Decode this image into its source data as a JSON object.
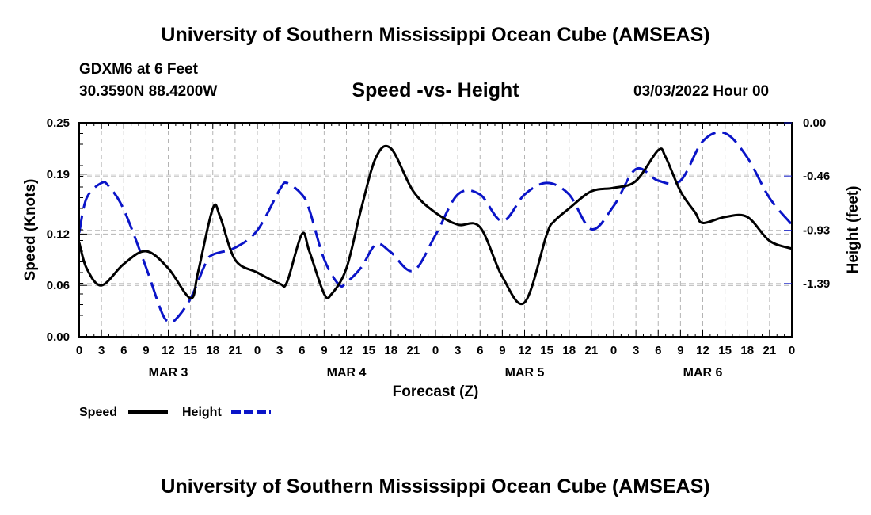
{
  "header": {
    "title": "University of Southern Mississippi Ocean Cube (AMSEAS)",
    "station": "GDXM6 at 6 Feet",
    "coords": "30.3590N  88.4200W",
    "chart_title": "Speed -vs- Height",
    "datetime": "03/03/2022 Hour 00"
  },
  "footer": {
    "title": "University of Southern Mississippi Ocean Cube (AMSEAS)"
  },
  "colors": {
    "speed": "#000000",
    "height": "#0a14c8",
    "grid": "#b4b4b4"
  },
  "chart_data": {
    "type": "line",
    "title": "Speed -vs- Height",
    "xlabel": "Forecast (Z)",
    "ylabel_left": "Speed (Knots)",
    "ylabel_right": "Height (feet)",
    "x_range": [
      0,
      96
    ],
    "x_tick_hours": [
      0,
      3,
      6,
      9,
      12,
      15,
      18,
      21,
      24,
      27,
      30,
      33,
      36,
      39,
      42,
      45,
      48,
      51,
      54,
      57,
      60,
      63,
      66,
      69,
      72,
      75,
      78,
      81,
      84,
      87,
      90,
      93,
      96
    ],
    "x_tick_labels": [
      "0",
      "3",
      "6",
      "9",
      "12",
      "15",
      "18",
      "21",
      "0",
      "3",
      "6",
      "9",
      "12",
      "15",
      "18",
      "21",
      "0",
      "3",
      "6",
      "9",
      "12",
      "15",
      "18",
      "21",
      "0",
      "3",
      "6",
      "9",
      "12",
      "15",
      "18",
      "21",
      "0"
    ],
    "day_labels": [
      {
        "label": "MAR 3",
        "hour": 12
      },
      {
        "label": "MAR 4",
        "hour": 36
      },
      {
        "label": "MAR 5",
        "hour": 60
      },
      {
        "label": "MAR 6",
        "hour": 84
      }
    ],
    "ylim_left": [
      0,
      0.25
    ],
    "yticks_left": [
      0.0,
      0.06,
      0.12,
      0.19,
      0.25
    ],
    "ytick_labels_left": [
      "0.00",
      "0.06",
      "0.12",
      "0.19",
      "0.25"
    ],
    "ylim_right": [
      -1.85,
      0.0
    ],
    "yticks_right": [
      0.0,
      -0.46,
      -0.93,
      -1.39
    ],
    "ytick_labels_right": [
      "0.00",
      "-0.46",
      "-0.93",
      "-1.39"
    ],
    "grid": true,
    "legend": [
      {
        "name": "Speed",
        "style": "solid"
      },
      {
        "name": "Height",
        "style": "dashed"
      }
    ],
    "series": [
      {
        "name": "Speed",
        "axis": "left",
        "style": "solid",
        "x": [
          0,
          1,
          3,
          6,
          9,
          12,
          15,
          16,
          18,
          19,
          21,
          24,
          27,
          28,
          30,
          31,
          33,
          34,
          36,
          38,
          40,
          42,
          45,
          48,
          51,
          54,
          57,
          60,
          63,
          64,
          66,
          69,
          72,
          75,
          78,
          79,
          81,
          83,
          84,
          87,
          90,
          93,
          96
        ],
        "values": [
          0.11,
          0.08,
          0.06,
          0.085,
          0.1,
          0.08,
          0.045,
          0.075,
          0.15,
          0.14,
          0.09,
          0.075,
          0.062,
          0.064,
          0.12,
          0.1,
          0.05,
          0.05,
          0.08,
          0.15,
          0.21,
          0.22,
          0.17,
          0.145,
          0.131,
          0.128,
          0.07,
          0.04,
          0.12,
          0.135,
          0.15,
          0.17,
          0.174,
          0.182,
          0.218,
          0.21,
          0.17,
          0.145,
          0.133,
          0.14,
          0.14,
          0.112,
          0.103
        ]
      },
      {
        "name": "Height",
        "axis": "right",
        "style": "dashed",
        "x": [
          0,
          1,
          3,
          4,
          6,
          9,
          11,
          12,
          13,
          15,
          17,
          18,
          21,
          24,
          27,
          28,
          30,
          31,
          33,
          35,
          36,
          38,
          40,
          42,
          45,
          48,
          51,
          54,
          57,
          60,
          63,
          66,
          69,
          72,
          75,
          78,
          81,
          84,
          87,
          90,
          93,
          96
        ],
        "values": [
          -0.95,
          -0.65,
          -0.52,
          -0.55,
          -0.75,
          -1.25,
          -1.62,
          -1.72,
          -1.7,
          -1.52,
          -1.22,
          -1.14,
          -1.08,
          -0.93,
          -0.58,
          -0.52,
          -0.62,
          -0.75,
          -1.18,
          -1.4,
          -1.38,
          -1.25,
          -1.05,
          -1.12,
          -1.28,
          -0.97,
          -0.62,
          -0.62,
          -0.85,
          -0.62,
          -0.52,
          -0.62,
          -0.92,
          -0.72,
          -0.4,
          -0.5,
          -0.5,
          -0.16,
          -0.09,
          -0.3,
          -0.65,
          -0.88
        ]
      }
    ]
  }
}
